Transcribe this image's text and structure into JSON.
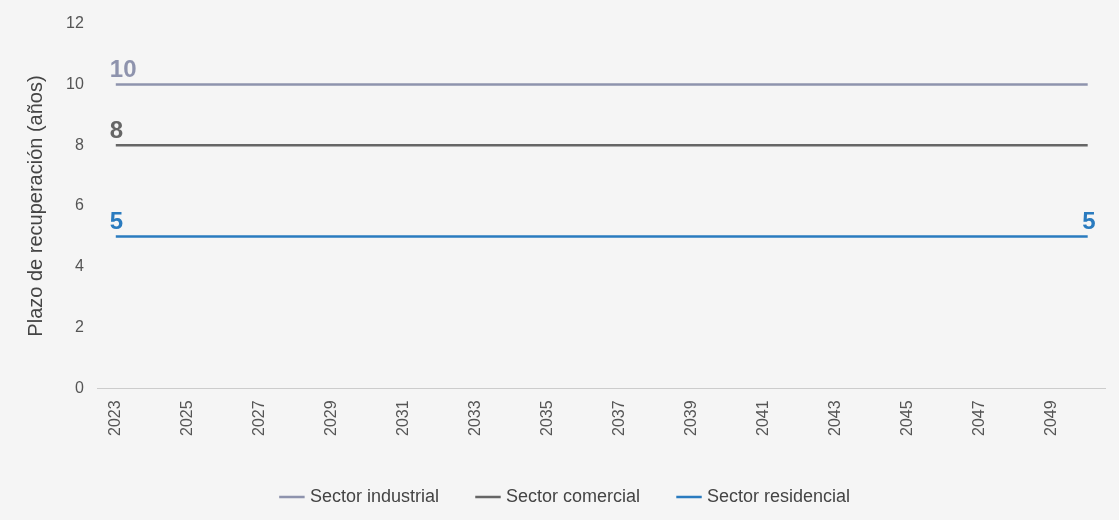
{
  "chart_data": {
    "type": "line",
    "ylabel": "Plazo de recuperación (años)",
    "categories": [
      "2023",
      null,
      "2025",
      null,
      "2027",
      null,
      "2029",
      null,
      "2031",
      null,
      "2033",
      null,
      "2035",
      null,
      "2037",
      null,
      "2039",
      null,
      "2041",
      null,
      "2043",
      null,
      "2045",
      null,
      "2047",
      null,
      "2049",
      null
    ],
    "series": [
      {
        "name": "Sector industrial",
        "color": "#8e93ad",
        "values": [
          10,
          10,
          10,
          10,
          10,
          10,
          10,
          10,
          10,
          10,
          10,
          10,
          10,
          10,
          10,
          10,
          10,
          10,
          10,
          10,
          10,
          10,
          10,
          10,
          10,
          10,
          10,
          10
        ],
        "value_labels": [
          "10",
          null,
          null,
          null,
          null,
          null,
          null,
          null,
          null,
          null,
          null,
          null,
          null,
          null,
          null,
          null,
          null,
          null,
          null,
          null,
          null,
          null,
          null,
          null,
          null,
          null,
          null,
          null
        ]
      },
      {
        "name": "Sector comercial",
        "color": "#666666",
        "values": [
          8,
          8,
          8,
          8,
          8,
          8,
          8,
          8,
          8,
          8,
          8,
          8,
          8,
          8,
          8,
          8,
          8,
          8,
          8,
          8,
          8,
          8,
          8,
          8,
          8,
          8,
          8,
          8
        ],
        "value_labels": [
          "8",
          null,
          null,
          null,
          null,
          null,
          null,
          null,
          null,
          null,
          null,
          null,
          null,
          null,
          null,
          null,
          null,
          null,
          null,
          null,
          null,
          null,
          null,
          null,
          null,
          null,
          null,
          null
        ]
      },
      {
        "name": "Sector residencial",
        "color": "#2a7bbf",
        "values": [
          5,
          5,
          5,
          5,
          5,
          5,
          5,
          5,
          5,
          5,
          5,
          5,
          5,
          5,
          5,
          5,
          5,
          5,
          5,
          5,
          5,
          5,
          5,
          5,
          5,
          5,
          5,
          5
        ],
        "value_labels": [
          "5",
          null,
          null,
          null,
          null,
          null,
          null,
          null,
          null,
          null,
          null,
          null,
          null,
          null,
          null,
          null,
          null,
          null,
          null,
          null,
          null,
          null,
          null,
          null,
          null,
          null,
          null,
          "5"
        ]
      }
    ],
    "ylim": [
      0,
      12
    ],
    "yticks": [
      0,
      2,
      4,
      6,
      8,
      10,
      12
    ],
    "grid": false,
    "legend": "bottom",
    "marker": "none",
    "line_style": "solid"
  }
}
